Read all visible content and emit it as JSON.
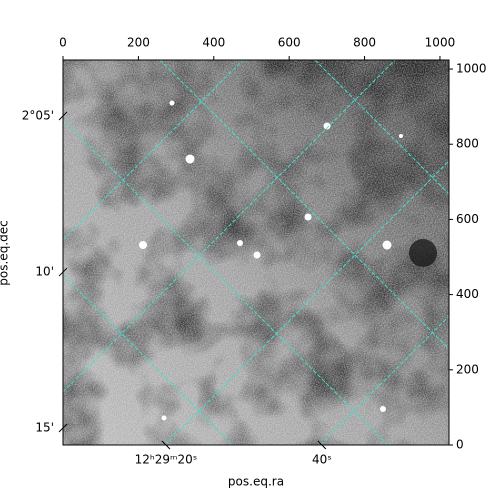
{
  "chart_data": {
    "type": "image",
    "xlabel": "pos.eq.ra",
    "ylabel": "pos.eq.dec",
    "xlim": [
      0,
      1024
    ],
    "xticks": [
      0,
      200,
      400,
      600,
      800,
      1000
    ],
    "ylim": [
      0,
      1024
    ],
    "yticks": [
      0,
      200,
      400,
      600,
      800,
      1000
    ],
    "ralim": [
      6.8,
      56.3
    ],
    "raticks": [
      {
        "value": 20,
        "label": "12ʰ29ᵐ20ˢ"
      },
      {
        "value": 40,
        "label": "40ˢ"
      }
    ],
    "declim": [
      2.2591,
      2.0534
    ],
    "decticks": [
      {
        "value": 2.0833,
        "label": "2°05'"
      },
      {
        "value": 2.1667,
        "label": "10'"
      },
      {
        "value": 2.25,
        "label": "15'"
      }
    ],
    "grid": true,
    "grid_color": "#40e0d0"
  }
}
